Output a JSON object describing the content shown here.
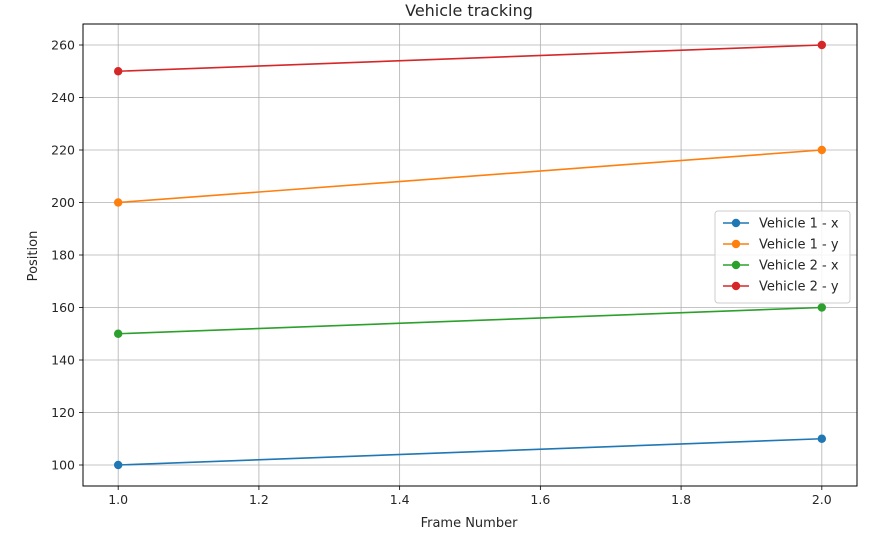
{
  "chart_data": {
    "type": "line",
    "title": "Vehicle tracking",
    "xlabel": "Frame Number",
    "ylabel": "Position",
    "xlim": [
      0.95,
      2.05
    ],
    "ylim": [
      92,
      268
    ],
    "xticks": [
      1.0,
      1.2,
      1.4,
      1.6,
      1.8,
      2.0
    ],
    "xtick_labels": [
      "1.0",
      "1.2",
      "1.4",
      "1.6",
      "1.8",
      "2.0"
    ],
    "yticks": [
      100,
      120,
      140,
      160,
      180,
      200,
      220,
      240,
      260
    ],
    "ytick_labels": [
      "100",
      "120",
      "140",
      "160",
      "180",
      "200",
      "220",
      "240",
      "260"
    ],
    "grid": true,
    "legend_position": "center-right",
    "series": [
      {
        "name": "Vehicle 1 - x",
        "color": "#1f77b4",
        "x": [
          1,
          2
        ],
        "y": [
          100,
          110
        ]
      },
      {
        "name": "Vehicle 1 - y",
        "color": "#ff7f0e",
        "x": [
          1,
          2
        ],
        "y": [
          200,
          220
        ]
      },
      {
        "name": "Vehicle 2 - x",
        "color": "#2ca02c",
        "x": [
          1,
          2
        ],
        "y": [
          150,
          160
        ]
      },
      {
        "name": "Vehicle 2 - y",
        "color": "#d62728",
        "x": [
          1,
          2
        ],
        "y": [
          250,
          260
        ]
      }
    ]
  }
}
